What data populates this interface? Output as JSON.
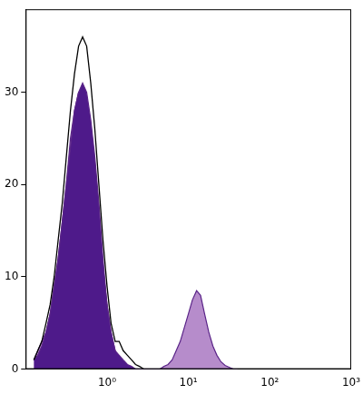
{
  "chart_data": {
    "type": "line",
    "log": "x",
    "grid": false,
    "xlim": [
      0.1,
      1000
    ],
    "xticks": [
      {
        "value": 1,
        "label": "10⁰"
      },
      {
        "value": 10,
        "label": "10¹"
      },
      {
        "value": 100,
        "label": "10²"
      },
      {
        "value": 1000,
        "label": "10³"
      }
    ],
    "ylim": [
      0,
      39
    ],
    "yticks": [
      0,
      10,
      20,
      30
    ],
    "x": [
      0.126,
      0.141,
      0.158,
      0.178,
      0.2,
      0.224,
      0.251,
      0.282,
      0.316,
      0.355,
      0.398,
      0.447,
      0.501,
      0.562,
      0.631,
      0.708,
      0.794,
      0.891,
      1,
      1.12,
      1.26,
      1.41,
      1.58,
      1.78,
      2,
      2.24,
      2.51,
      2.82,
      3.16,
      3.55,
      3.98,
      4.47,
      5.01,
      5.62,
      6.31,
      7.08,
      7.94,
      8.91,
      10,
      11.2,
      12.6,
      14.1,
      15.8,
      17.8,
      20,
      22.4,
      25.1,
      28.2,
      31.6,
      35.5,
      39.8
    ],
    "series": [
      {
        "type": "area",
        "color": "#b68ccb",
        "values": [
          1,
          2,
          3,
          4,
          6,
          9,
          12,
          16,
          20,
          25,
          28,
          30,
          30,
          29,
          26,
          22,
          17,
          11,
          7,
          4,
          2,
          1,
          0.5,
          0.3,
          0,
          0,
          0,
          0,
          0,
          0,
          0,
          0,
          0.3,
          0.5,
          1,
          2,
          3,
          4.5,
          6,
          7.5,
          8.5,
          8,
          6,
          4,
          2.5,
          1.5,
          0.8,
          0.4,
          0.2,
          0,
          0
        ]
      },
      {
        "type": "area",
        "color": "#4e1a8a",
        "values": [
          1,
          1.5,
          2.5,
          4,
          6,
          9,
          12,
          16,
          20,
          24,
          28,
          30,
          31,
          30,
          27,
          23,
          18,
          12,
          7,
          4,
          2,
          1.5,
          1,
          0.5,
          0.3,
          0,
          0,
          0,
          0,
          0,
          0,
          0,
          0,
          0,
          0,
          0,
          0,
          0,
          0,
          0,
          0,
          0,
          0,
          0,
          0,
          0,
          0,
          0,
          0,
          0,
          0
        ]
      },
      {
        "type": "line",
        "color": "#000000",
        "values": [
          1,
          2,
          3,
          5,
          7,
          10,
          14,
          18,
          23,
          28,
          32,
          35,
          36,
          35,
          31,
          26,
          20,
          14,
          9,
          5,
          3,
          3,
          2,
          1.5,
          1,
          0.5,
          0.3,
          0,
          0,
          0,
          0,
          0,
          0,
          0,
          0,
          0,
          0,
          0,
          0,
          0,
          0,
          0,
          0,
          0,
          0,
          0,
          0,
          0,
          0,
          0,
          0
        ]
      }
    ]
  }
}
